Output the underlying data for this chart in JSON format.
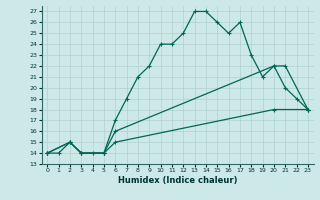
{
  "xlabel": "Humidex (Indice chaleur)",
  "ylabel": "",
  "bg_color": "#cde8e8",
  "grid_color": "#b0d0d0",
  "line_color": "#006655",
  "xlim": [
    -0.5,
    23.5
  ],
  "ylim": [
    13,
    27.5
  ],
  "xticks": [
    0,
    1,
    2,
    3,
    4,
    5,
    6,
    7,
    8,
    9,
    10,
    11,
    12,
    13,
    14,
    15,
    16,
    17,
    18,
    19,
    20,
    21,
    22,
    23
  ],
  "yticks": [
    13,
    14,
    15,
    16,
    17,
    18,
    19,
    20,
    21,
    22,
    23,
    24,
    25,
    26,
    27
  ],
  "line1_x": [
    0,
    1,
    2,
    3,
    4,
    5,
    6,
    7,
    8,
    9,
    10,
    11,
    12,
    13,
    14,
    15,
    16,
    17,
    18,
    19,
    20,
    21,
    22,
    23
  ],
  "line1_y": [
    14,
    14,
    15,
    14,
    14,
    14,
    17,
    19,
    21,
    22,
    24,
    24,
    25,
    27,
    27,
    26,
    25,
    26,
    23,
    21,
    22,
    20,
    19,
    18
  ],
  "line2_x": [
    0,
    2,
    3,
    5,
    6,
    20,
    21,
    23
  ],
  "line2_y": [
    14,
    15,
    14,
    14,
    16,
    22,
    22,
    18
  ],
  "line3_x": [
    0,
    2,
    3,
    5,
    6,
    20,
    23
  ],
  "line3_y": [
    14,
    15,
    14,
    14,
    15,
    18,
    18
  ]
}
